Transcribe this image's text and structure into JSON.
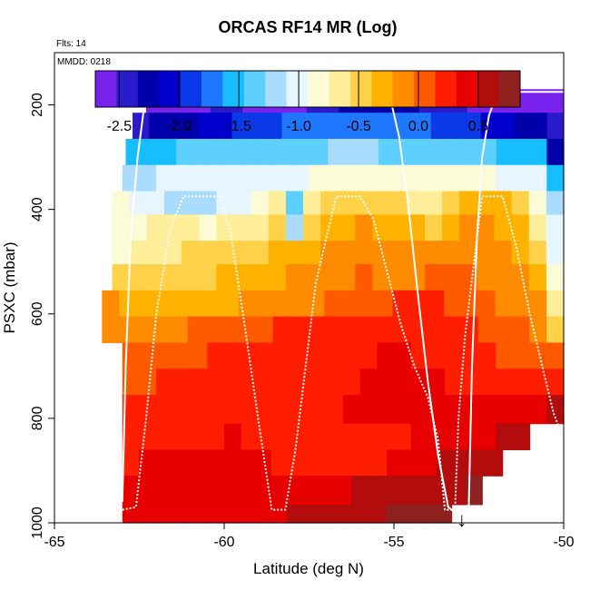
{
  "chart_data": {
    "type": "heatmap",
    "title": "ORCAS RF14 MR (Log)",
    "flights_label": "Flts: 14",
    "date_label": "MMDD: 0218",
    "xlabel": "Latitude (deg N)",
    "ylabel": "PSXC (mbar)",
    "xlim": [
      -65,
      -50
    ],
    "ylim": [
      1000,
      100
    ],
    "x_ticks": [
      -65,
      -60,
      -55,
      -50
    ],
    "x_tick_labels": [
      "-65",
      "-60",
      "-55",
      "-50"
    ],
    "y_ticks": [
      200,
      400,
      600,
      800,
      1000
    ],
    "y_tick_labels": [
      "200",
      "400",
      "600",
      "800",
      "1000"
    ],
    "colorbar": {
      "range": [
        -2.7,
        0.85
      ],
      "ticks": [
        -2.5,
        -2.0,
        -1.5,
        -1.0,
        -0.5,
        0.0,
        0.5
      ],
      "tick_labels": [
        "-2.5",
        "-2.0",
        "-1.5",
        "-1.0",
        "-0.5",
        "0.0",
        "0.5"
      ],
      "colors": [
        "#7a22ee",
        "#2a1acc",
        "#0000aa",
        "#0000cc",
        "#0a3ae8",
        "#1e78ff",
        "#16bdff",
        "#5ed0ff",
        "#aadcff",
        "#e6f5ff",
        "#fbfbd6",
        "#ffee99",
        "#ffd24a",
        "#ffb200",
        "#ff8c00",
        "#ff5a00",
        "#ff1e00",
        "#e60000",
        "#b20c0c",
        "#8f2020"
      ]
    },
    "grid": {
      "lat_start": -63.0,
      "lat_step": 0.5,
      "pressure_layers": [
        {
          "p": [
            170,
            215
          ],
          "lat": [
            -62.3,
            -50
          ],
          "values": [
            -2.65,
            -2.6,
            -2.55,
            -2.55,
            -2.5,
            -2.5,
            -2.55,
            -2.6,
            -2.6,
            -2.6,
            -2.5,
            -2.4,
            -2.3,
            -2.2,
            -2.2,
            -2.3,
            -2.3,
            -2.4,
            -2.4,
            -2.5,
            -2.6,
            -2.6,
            -2.6,
            -2.6,
            -2.6,
            -2.6
          ]
        },
        {
          "p": [
            215,
            265
          ],
          "lat": [
            -62.7,
            -50
          ],
          "values": [
            -2.4,
            -2.3,
            -2.25,
            -2.2,
            -2.1,
            -2.0,
            -1.95,
            -1.9,
            -1.85,
            -1.8,
            -1.8,
            -1.75,
            -1.7,
            -1.7,
            -1.7,
            -1.75,
            -1.8,
            -1.8,
            -1.85,
            -1.9,
            -1.95,
            -2.0,
            -2.1,
            -2.2,
            -2.3,
            -2.4
          ]
        },
        {
          "p": [
            265,
            315
          ],
          "lat": [
            -62.9,
            -50
          ],
          "values": [
            -1.6,
            -1.55,
            -1.5,
            -1.45,
            -1.45,
            -1.4,
            -1.4,
            -1.35,
            -1.35,
            -1.3,
            -1.3,
            -1.3,
            -1.25,
            -1.25,
            -1.25,
            -1.3,
            -1.3,
            -1.3,
            -1.35,
            -1.35,
            -1.4,
            -1.45,
            -1.5,
            -1.55,
            -1.6,
            -2.2
          ]
        },
        {
          "p": [
            315,
            365
          ],
          "lat": [
            -63.0,
            -50
          ],
          "values": [
            -1.2,
            -1.15,
            -1.1,
            -1.1,
            -1.05,
            -1.05,
            -1.0,
            -1.0,
            -1.0,
            -0.95,
            -0.95,
            -0.9,
            -0.9,
            -0.85,
            -0.85,
            -0.85,
            -0.8,
            -0.8,
            -0.8,
            -0.8,
            -0.85,
            -0.9,
            -0.95,
            -1.0,
            -1.1,
            -1.5
          ]
        },
        {
          "p": [
            365,
            410
          ],
          "lat": [
            -63.3,
            -50
          ],
          "values": [
            -0.9,
            -1.05,
            -1.1,
            -1.2,
            -1.2,
            -1.15,
            -1.1,
            -1.0,
            -0.8,
            -0.65,
            -1.3,
            -0.6,
            -0.5,
            -0.45,
            -0.4,
            -0.45,
            -0.5,
            -0.6,
            -0.65,
            -0.55,
            -0.35,
            -0.3,
            -0.3,
            -0.45,
            -0.8,
            -1.2
          ]
        },
        {
          "p": [
            410,
            460
          ],
          "lat": [
            -63.3,
            -50
          ],
          "values": [
            -0.8,
            -0.75,
            -0.7,
            -0.7,
            -0.7,
            -0.75,
            -0.7,
            -0.65,
            -0.6,
            -0.5,
            -1.2,
            -0.45,
            -0.3,
            -0.25,
            -0.2,
            -0.3,
            -0.3,
            -0.35,
            -0.4,
            -0.25,
            -0.2,
            -0.2,
            -0.25,
            -0.3,
            -0.7,
            -1.0
          ]
        },
        {
          "p": [
            460,
            505
          ],
          "lat": [
            -63.3,
            -50
          ],
          "values": [
            -0.75,
            -0.7,
            -0.65,
            -0.6,
            -0.55,
            -0.55,
            -0.5,
            -0.45,
            -0.4,
            -0.35,
            -0.3,
            -0.25,
            -0.2,
            -0.15,
            -0.1,
            -0.1,
            -0.05,
            -0.1,
            -0.15,
            -0.1,
            -0.05,
            -0.1,
            -0.2,
            -0.3,
            -0.5,
            -1.0
          ]
        },
        {
          "p": [
            505,
            555
          ],
          "lat": [
            -63.3,
            -50
          ],
          "values": [
            -0.55,
            -0.5,
            -0.5,
            -0.45,
            -0.45,
            -0.4,
            -0.35,
            -0.35,
            -0.3,
            -0.25,
            -0.2,
            -0.15,
            -0.1,
            -0.05,
            0.0,
            -0.05,
            -0.1,
            -0.05,
            0.0,
            0.0,
            0.0,
            -0.05,
            -0.1,
            -0.2,
            -0.3,
            -0.9
          ]
        },
        {
          "p": [
            555,
            605
          ],
          "lat": [
            -63.6,
            -50
          ],
          "values": [
            -0.2,
            -0.25,
            -0.3,
            -0.3,
            -0.3,
            -0.3,
            -0.3,
            -0.25,
            -0.2,
            -0.2,
            -0.15,
            -0.1,
            -0.05,
            0.0,
            0.05,
            0.1,
            0.1,
            0.15,
            0.15,
            0.15,
            0.1,
            0.05,
            0.0,
            -0.05,
            -0.1,
            -0.2,
            -0.7
          ]
        },
        {
          "p": [
            605,
            655
          ],
          "lat": [
            -63.6,
            -50
          ],
          "values": [
            -0.15,
            -0.15,
            -0.1,
            -0.05,
            -0.05,
            0.0,
            0.05,
            0.05,
            0.1,
            0.1,
            0.15,
            0.15,
            0.2,
            0.2,
            0.25,
            0.25,
            0.3,
            0.25,
            0.2,
            0.2,
            0.15,
            0.15,
            0.1,
            0.05,
            0.0,
            -0.05,
            -0.5
          ]
        },
        {
          "p": [
            655,
            705
          ],
          "lat": [
            -63.0,
            -50
          ],
          "values": [
            0.05,
            0.05,
            0.1,
            0.1,
            0.1,
            0.15,
            0.15,
            0.15,
            0.2,
            0.2,
            0.2,
            0.2,
            0.25,
            0.25,
            0.3,
            0.35,
            0.35,
            0.3,
            0.25,
            0.25,
            0.2,
            0.15,
            0.1,
            0.1,
            0.05,
            0.0
          ]
        },
        {
          "p": [
            705,
            755
          ],
          "lat": [
            -63.0,
            -50
          ],
          "values": [
            0.1,
            0.1,
            0.15,
            0.15,
            0.15,
            0.2,
            0.2,
            0.2,
            0.25,
            0.25,
            0.25,
            0.25,
            0.3,
            0.3,
            0.35,
            0.4,
            0.4,
            0.4,
            0.35,
            0.3,
            0.3,
            0.25,
            0.2,
            0.2,
            0.25,
            0.3
          ]
        },
        {
          "p": [
            755,
            810
          ],
          "lat": [
            -63.0,
            -50
          ],
          "values": [
            0.15,
            0.15,
            0.2,
            0.2,
            0.2,
            0.2,
            0.25,
            0.25,
            0.25,
            0.3,
            0.3,
            0.3,
            0.3,
            0.35,
            0.35,
            0.4,
            0.45,
            0.45,
            0.4,
            0.35,
            0.35,
            0.35,
            0.35,
            0.4,
            0.45,
            0.5
          ]
        },
        {
          "p": [
            810,
            860
          ],
          "lat": [
            -63.0,
            -51
          ],
          "values": [
            0.2,
            0.25,
            0.25,
            0.3,
            0.3,
            0.3,
            0.35,
            0.3,
            0.3,
            0.3,
            0.25,
            0.25,
            0.25,
            0.2,
            0.2,
            0.25,
            0.3,
            0.35,
            0.4,
            0.45,
            0.45,
            0.45,
            0.5,
            0.5
          ]
        },
        {
          "p": [
            860,
            910
          ],
          "lat": [
            -63.0,
            -51.8
          ],
          "values": [
            0.3,
            0.35,
            0.35,
            0.4,
            0.4,
            0.4,
            0.4,
            0.35,
            0.35,
            0.3,
            0.3,
            0.3,
            0.25,
            0.25,
            0.25,
            0.3,
            0.35,
            0.4,
            0.45,
            0.5,
            0.55,
            0.6,
            0.6
          ]
        },
        {
          "p": [
            910,
            965
          ],
          "lat": [
            -63.0,
            -52.4
          ],
          "values": [
            0.4,
            0.4,
            0.45,
            0.45,
            0.45,
            0.45,
            0.45,
            0.45,
            0.4,
            0.4,
            0.4,
            0.4,
            0.45,
            0.45,
            0.5,
            0.55,
            0.55,
            0.6,
            0.6,
            0.65,
            0.65,
            0.7
          ]
        },
        {
          "p": [
            965,
            1000
          ],
          "lat": [
            -63.0,
            -53.3
          ],
          "values": [
            0.45,
            0.45,
            0.45,
            0.45,
            0.45,
            0.45,
            0.45,
            0.45,
            0.45,
            0.45,
            0.5,
            0.5,
            0.5,
            0.55,
            0.6,
            0.65,
            0.7,
            0.75,
            0.8,
            0.8
          ]
        }
      ]
    },
    "flight_track": [
      [
        -63.0,
        960
      ],
      [
        -62.9,
        700
      ],
      [
        -62.75,
        450
      ],
      [
        -62.55,
        300
      ],
      [
        -62.35,
        200
      ],
      [
        -62.2,
        175
      ],
      [
        -57.8,
        175
      ],
      [
        -55.3,
        175
      ],
      [
        -55.1,
        190
      ],
      [
        -54.85,
        260
      ],
      [
        -54.6,
        380
      ],
      [
        -54.3,
        560
      ],
      [
        -54.0,
        730
      ],
      [
        -53.7,
        870
      ],
      [
        -53.4,
        970
      ],
      [
        -53.2,
        980
      ],
      [
        -52.8,
        980
      ],
      [
        -52.7,
        700
      ],
      [
        -52.55,
        450
      ],
      [
        -52.4,
        300
      ],
      [
        -52.2,
        220
      ],
      [
        -52.0,
        185
      ],
      [
        -51.6,
        175
      ],
      [
        -50.0,
        175
      ]
    ],
    "flight_track_2": [
      [
        -63.0,
        975
      ],
      [
        -62.6,
        970
      ],
      [
        -62.3,
        800
      ],
      [
        -62.0,
        600
      ],
      [
        -61.6,
        440
      ],
      [
        -61.2,
        375
      ],
      [
        -60.1,
        375
      ],
      [
        -59.8,
        450
      ],
      [
        -59.4,
        620
      ],
      [
        -59.0,
        800
      ],
      [
        -58.6,
        975
      ],
      [
        -58.2,
        975
      ],
      [
        -57.9,
        860
      ],
      [
        -57.6,
        700
      ],
      [
        -57.3,
        540
      ],
      [
        -56.9,
        430
      ],
      [
        -56.7,
        375
      ],
      [
        -56.0,
        375
      ],
      [
        -55.6,
        420
      ],
      [
        -55.2,
        520
      ],
      [
        -54.8,
        620
      ],
      [
        -54.4,
        700
      ],
      [
        -54.0,
        760
      ],
      [
        -53.7,
        840
      ],
      [
        -53.5,
        975
      ],
      [
        -53.2,
        975
      ],
      [
        -53.1,
        800
      ],
      [
        -52.9,
        640
      ],
      [
        -52.6,
        480
      ],
      [
        -52.4,
        375
      ],
      [
        -51.8,
        375
      ],
      [
        -51.4,
        470
      ],
      [
        -51.0,
        600
      ],
      [
        -50.3,
        790
      ],
      [
        -50.0,
        840
      ]
    ],
    "arrow_marker": {
      "lat": -53.0,
      "label": "↓"
    }
  }
}
